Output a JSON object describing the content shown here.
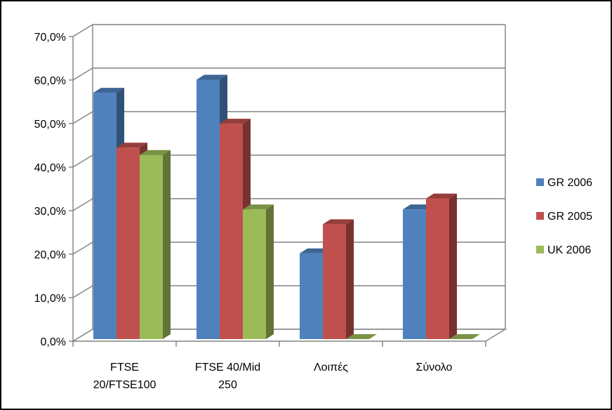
{
  "chart_data": {
    "type": "bar",
    "title": "",
    "xlabel": "",
    "ylabel": "",
    "ylim": [
      0,
      70
    ],
    "yticks": [
      "0,0%",
      "10,0%",
      "20,0%",
      "30,0%",
      "40,0%",
      "50,0%",
      "60,0%",
      "70,0%"
    ],
    "categories": [
      [
        "FTSE",
        "20/FTSE100"
      ],
      [
        "FTSE 40/Mid",
        "250"
      ],
      [
        "Λοιπές"
      ],
      [
        "Σύνολο"
      ]
    ],
    "series": [
      {
        "name": "GR 2006",
        "color": "#4F81BD",
        "values": [
          56.6,
          59.6,
          19.7,
          29.8
        ]
      },
      {
        "name": "GR 2005",
        "color": "#C0504D",
        "values": [
          44.0,
          49.5,
          26.4,
          32.3
        ]
      },
      {
        "name": "UK 2006",
        "color": "#9BBB59",
        "values": [
          42.3,
          29.8,
          0,
          0
        ]
      }
    ],
    "legend_position": "right",
    "grid": true
  }
}
